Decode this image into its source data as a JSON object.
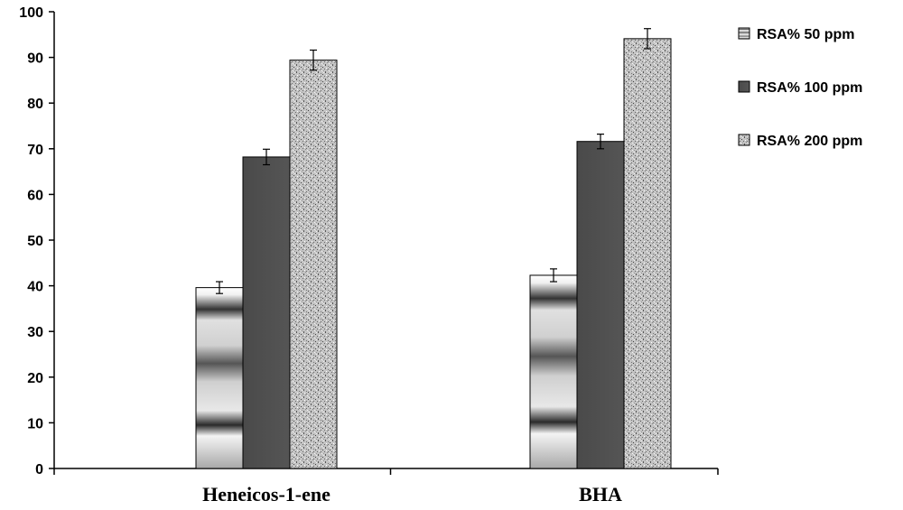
{
  "chart_data": {
    "type": "bar",
    "categories": [
      "Heneicos-1-ene",
      "BHA"
    ],
    "series": [
      {
        "name": "RSA% 50 ppm",
        "values": [
          39.6,
          42.3
        ],
        "errors": [
          1.3,
          1.4
        ]
      },
      {
        "name": "RSA% 100 ppm",
        "values": [
          68.2,
          71.6
        ],
        "errors": [
          1.7,
          1.6
        ]
      },
      {
        "name": "RSA% 200 ppm",
        "values": [
          89.4,
          94.1
        ],
        "errors": [
          2.2,
          2.2
        ]
      }
    ],
    "ylim": [
      0,
      100
    ],
    "yticks": [
      0,
      10,
      20,
      30,
      40,
      50,
      60,
      70,
      80,
      90,
      100
    ],
    "legend_position": "right",
    "grid": false,
    "colors": {
      "series_50": "#d8d8d8",
      "series_100": "#555555",
      "series_200": "#bcbcbc",
      "axis": "#000000"
    }
  }
}
